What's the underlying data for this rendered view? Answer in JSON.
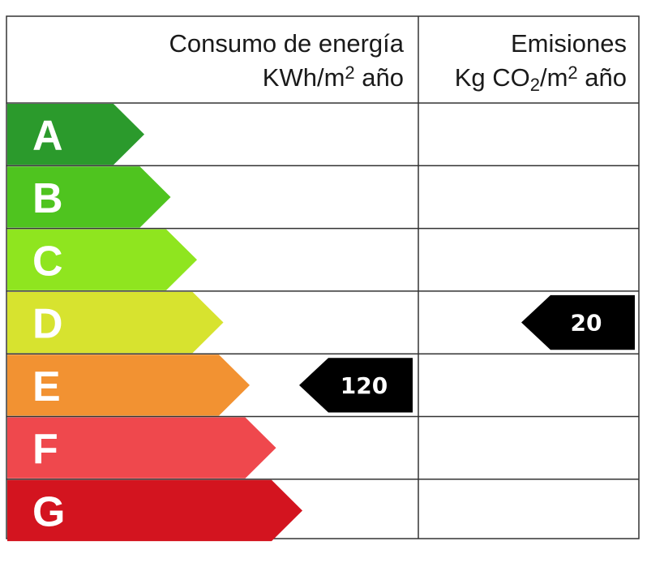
{
  "header": {
    "consumption": {
      "title": "Consumo de energía",
      "unit": [
        {
          "text": "KWh/m",
          "style": "normal"
        },
        {
          "text": "2",
          "style": "sup"
        },
        {
          "text": " año",
          "style": "normal"
        }
      ]
    },
    "emissions": {
      "title": "Emisiones",
      "unit": [
        {
          "text": "Kg CO",
          "style": "normal"
        },
        {
          "text": "2",
          "style": "sub"
        },
        {
          "text": "/m",
          "style": "normal"
        },
        {
          "text": "2",
          "style": "sup"
        },
        {
          "text": " año",
          "style": "normal"
        }
      ]
    }
  },
  "grades": [
    {
      "label": "A",
      "color": "#2b9a2c"
    },
    {
      "label": "B",
      "color": "#4fc41f"
    },
    {
      "label": "C",
      "color": "#8fe51f"
    },
    {
      "label": "D",
      "color": "#d7e32f"
    },
    {
      "label": "E",
      "color": "#f29232"
    },
    {
      "label": "F",
      "color": "#ef484d"
    },
    {
      "label": "G",
      "color": "#d3141f"
    }
  ],
  "consumption": {
    "value": 120,
    "grade": "E"
  },
  "emissions": {
    "value": 20,
    "grade": "D"
  }
}
